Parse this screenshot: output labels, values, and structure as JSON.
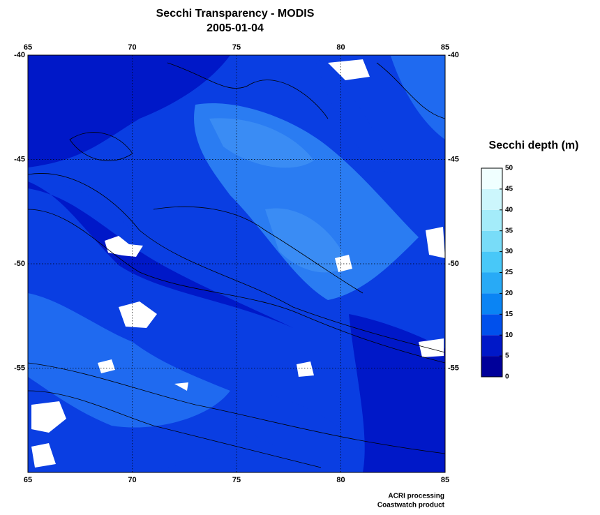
{
  "chart_data": {
    "type": "map",
    "title": "Secchi Transparency - MODIS",
    "subtitle": "2005-01-04",
    "xlim": [
      65,
      85
    ],
    "xticks": [
      65,
      70,
      75,
      80,
      85
    ],
    "ylim": [
      -60,
      -40
    ],
    "yticks": [
      -40,
      -45,
      -50,
      -55
    ],
    "grid": true,
    "colorbar": {
      "label": "Secchi depth (m)",
      "lim": [
        0,
        50
      ],
      "ticks": [
        0,
        5,
        10,
        15,
        20,
        25,
        30,
        35,
        40,
        45,
        50
      ],
      "colors": [
        "#00009a",
        "#0018c8",
        "#0050ec",
        "#0a84f4",
        "#28aaf6",
        "#48c8f8",
        "#78dcf8",
        "#a4ecfa",
        "#ccf6fc",
        "#f0ffff"
      ]
    },
    "credits": [
      "ACRI processing",
      "Coastwatch product"
    ]
  }
}
